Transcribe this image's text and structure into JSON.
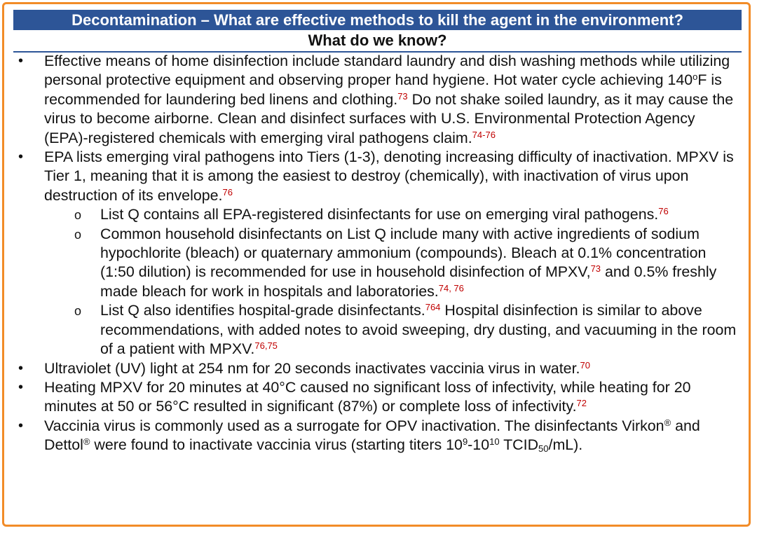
{
  "header": {
    "title": "Decontamination – What are effective methods to kill the agent in the environment?",
    "subtitle": "What do we know?"
  },
  "bullet_symbol": "•",
  "sub_bullet_symbol": "o",
  "bullets": [
    {
      "text_a": "Effective means of home disinfection include standard laundry and dish washing methods while utilizing personal protective equipment and observing proper hand hygiene. Hot water cycle achieving 140",
      "degree_mark": "o",
      "text_b": "F is recommended for laundering bed linens and clothing.",
      "ref_1": "73",
      "text_c": " Do not shake soiled laundry, as it may cause the virus to become airborne. Clean and disinfect surfaces with U.S. Environmental Protection Agency (EPA)-registered chemicals with emerging viral pathogens claim.",
      "ref_2": "74-76"
    },
    {
      "text_a": "EPA lists emerging viral pathogens into Tiers (1-3), denoting increasing difficulty of inactivation. MPXV is Tier 1, meaning that it is among the easiest to destroy (chemically), with inactivation of virus upon destruction of its envelope.",
      "ref_1": "76",
      "sub": [
        {
          "text_a": "List Q contains all EPA-registered disinfectants for use on emerging viral pathogens.",
          "ref_1": "76"
        },
        {
          "text_a": "Common household disinfectants on List Q include many with active ingredients of sodium hypochlorite (bleach) or quaternary ammonium (compounds). Bleach at 0.1% concentration (1:50 dilution) is recommended for use in household disinfection of MPXV,",
          "ref_1": "73",
          "text_b": " and 0.5% freshly made bleach for work in hospitals and laboratories.",
          "ref_2": "74, 76"
        },
        {
          "text_a": "List Q also identifies hospital-grade disinfectants.",
          "ref_1": "764",
          "text_b": " Hospital disinfection is similar to above recommendations, with added notes to avoid sweeping, dry dusting, and vacuuming in the room of a patient with MPXV.",
          "ref_2": "76,75"
        }
      ]
    },
    {
      "text_a": "Ultraviolet (UV) light at 254 nm for 20 seconds inactivates vaccinia virus in water.",
      "ref_1": "70"
    },
    {
      "text_a": "Heating MPXV for 20 minutes at 40°C caused no significant loss of infectivity, while heating for 20 minutes at 50 or 56°C resulted in significant (87%) or complete loss of infectivity.",
      "ref_1": "72"
    },
    {
      "text_a": "Vaccinia virus is commonly used as a surrogate for OPV inactivation. The disinfectants Virkon",
      "reg_1": "®",
      "text_b": " and Dettol",
      "reg_2": "®",
      "text_c": " were found to inactivate vaccinia virus (starting titers 10",
      "exp_1": "9",
      "text_d": "-10",
      "exp_2": "10",
      "text_e": " TCID",
      "sub_1": "50",
      "text_f": "/mL)."
    }
  ]
}
